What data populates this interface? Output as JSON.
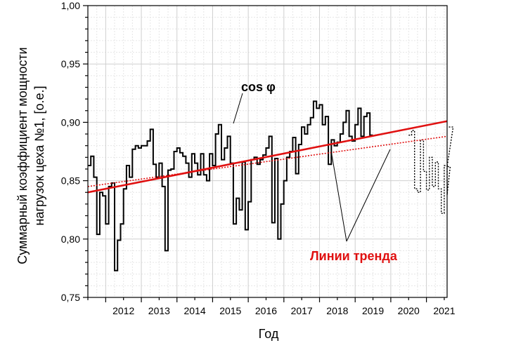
{
  "chart_data": {
    "type": "line",
    "xlabel": "Год",
    "ylabel_line1": "Суммарный коэффициент мощности",
    "ylabel_line2": "нагрузок цеха №1, [о.е.]",
    "xlim": [
      2011.5,
      2021.58
    ],
    "ylim": [
      0.75,
      1.0
    ],
    "y_ticks": [
      "0,75",
      "0,80",
      "0,85",
      "0,90",
      "0,95",
      "1,00"
    ],
    "x_ticks": [
      "2012",
      "2013",
      "2014",
      "2015",
      "2016",
      "2017",
      "2018",
      "2019",
      "2020",
      "2021"
    ],
    "grid": true,
    "annotations": {
      "cos_label": "cos φ",
      "trend_label": "Линии тренда"
    },
    "colors": {
      "measured": "#000000",
      "trend": "#e01010"
    },
    "series": [
      {
        "style": "solid-step",
        "x_start": 2011.5,
        "x_step": 0.0833,
        "values": [
          0.863,
          0.871,
          0.853,
          0.804,
          0.84,
          0.837,
          0.813,
          0.845,
          0.848,
          0.773,
          0.799,
          0.813,
          0.843,
          0.863,
          0.853,
          0.877,
          0.88,
          0.878,
          0.88,
          0.88,
          0.884,
          0.894,
          0.864,
          0.853,
          0.865,
          0.845,
          0.79,
          0.859,
          0.86,
          0.875,
          0.878,
          0.874,
          0.871,
          0.865,
          0.853,
          0.873,
          0.865,
          0.855,
          0.873,
          0.855,
          0.85,
          0.873,
          0.863,
          0.89,
          0.898,
          0.868,
          0.878,
          0.888,
          0.865,
          0.813,
          0.835,
          0.825,
          0.866,
          0.808,
          0.832,
          0.868,
          0.87,
          0.864,
          0.868,
          0.872,
          0.878,
          0.888,
          0.814,
          0.869,
          0.8,
          0.83,
          0.85,
          0.87,
          0.875,
          0.887,
          0.856,
          0.881,
          0.896,
          0.89,
          0.898,
          0.904,
          0.918,
          0.912,
          0.915,
          0.898,
          0.905,
          0.864,
          0.885,
          0.88,
          0.883,
          0.89,
          0.9,
          0.91,
          0.888,
          0.884,
          0.898,
          0.912,
          0.888,
          0.905,
          0.908,
          0.889
        ]
      },
      {
        "style": "dotted-step",
        "x_start": 2020.5,
        "x_step": 0.0833,
        "values": [
          0.889,
          0.893,
          0.843,
          0.84,
          0.885,
          0.858,
          0.842,
          0.87,
          0.845,
          0.866,
          0.843,
          0.822,
          0.863,
          0.838,
          0.862,
          0.896
        ]
      },
      {
        "name": "trend-solid",
        "style": "trend-solid",
        "x": [
          2011.5,
          2021.58
        ],
        "y": [
          0.84,
          0.901
        ]
      },
      {
        "name": "trend-dotted",
        "style": "trend-dotted",
        "x": [
          2011.5,
          2021.58
        ],
        "y": [
          0.845,
          0.888
        ]
      }
    ]
  }
}
